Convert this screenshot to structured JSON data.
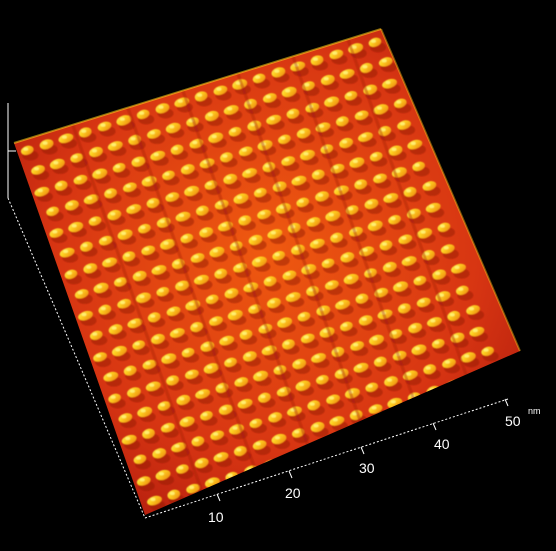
{
  "image": {
    "subject": "3D surface rendering with periodic ridges",
    "colors": {
      "background": "#000000",
      "low": "#b01a10",
      "mid": "#e64a12",
      "high": "#ffe51a",
      "axis": "#ffffff"
    }
  },
  "axis": {
    "x_ticks": [
      "10",
      "20",
      "30",
      "40",
      "50"
    ],
    "unit": "nm"
  }
}
